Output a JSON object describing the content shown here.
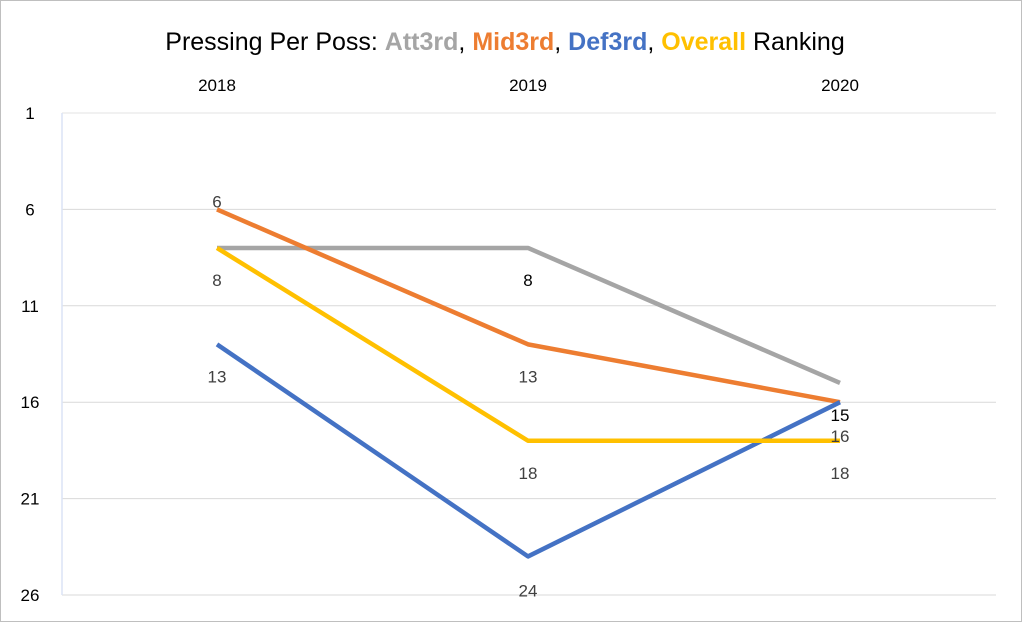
{
  "chart_data": {
    "type": "line",
    "title_parts": [
      {
        "text": "Pressing Per Poss: ",
        "color": "#000000",
        "bold": false
      },
      {
        "text": "Att3rd",
        "color": "#A5A5A5",
        "bold": true
      },
      {
        "text": ", ",
        "color": "#000000",
        "bold": false
      },
      {
        "text": "Mid3rd",
        "color": "#ED7D31",
        "bold": true
      },
      {
        "text": ", ",
        "color": "#000000",
        "bold": false
      },
      {
        "text": "Def3rd",
        "color": "#4472C4",
        "bold": true
      },
      {
        "text": ", ",
        "color": "#000000",
        "bold": false
      },
      {
        "text": "Overall",
        "color": "#FFC000",
        "bold": true
      },
      {
        "text": " Ranking",
        "color": "#000000",
        "bold": false
      }
    ],
    "categories": [
      "2018",
      "2019",
      "2020"
    ],
    "y_ticks": [
      1,
      6,
      11,
      16,
      21,
      26
    ],
    "ylim": [
      1,
      26
    ],
    "y_reversed": true,
    "grid": true,
    "series": [
      {
        "name": "Att3rd",
        "color": "#A5A5A5",
        "values": [
          8,
          8,
          15
        ],
        "labels": [
          "",
          "8",
          "15"
        ]
      },
      {
        "name": "Mid3rd",
        "color": "#ED7D31",
        "values": [
          6,
          13,
          16
        ],
        "labels": [
          "6",
          "13",
          "16"
        ]
      },
      {
        "name": "Def3rd",
        "color": "#4472C4",
        "values": [
          13,
          24,
          16
        ],
        "labels": [
          "13",
          "24",
          ""
        ]
      },
      {
        "name": "Overall",
        "color": "#FFC000",
        "values": [
          8,
          18,
          18
        ],
        "labels": [
          "8",
          "18",
          "18"
        ]
      }
    ],
    "label_colors": {
      "Att3rd": "#000000",
      "Mid3rd": "#404040",
      "Def3rd": "#404040",
      "Overall": "#404040"
    }
  }
}
